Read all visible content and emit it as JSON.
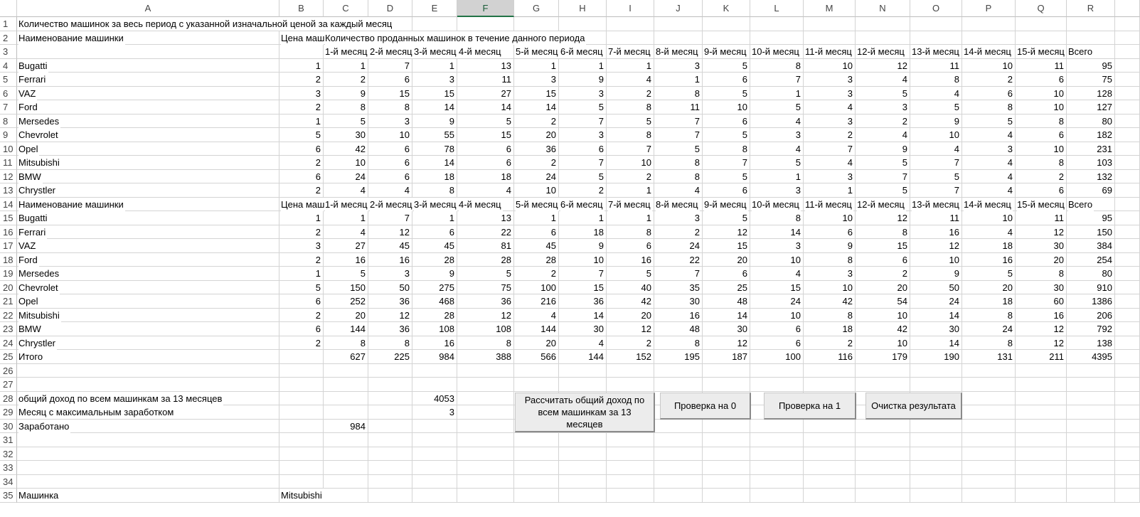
{
  "sheet": {
    "columns": [
      "A",
      "B",
      "C",
      "D",
      "E",
      "F",
      "G",
      "H",
      "I",
      "J",
      "K",
      "L",
      "M",
      "N",
      "O",
      "P",
      "Q",
      "R"
    ],
    "row_numbers": [
      1,
      2,
      3,
      4,
      5,
      6,
      7,
      8,
      9,
      10,
      11,
      12,
      13,
      14,
      15,
      16,
      17,
      18,
      19,
      20,
      21,
      22,
      23,
      24,
      25,
      26,
      27,
      28,
      29,
      30,
      31,
      32,
      33,
      34,
      35
    ],
    "rows": [
      {
        "A": "Количество машинок за весь период с указанной изначальной ценой за каждый месяц"
      },
      {
        "A": "Наименование машинки",
        "B": "Цена маш",
        "C": "Количество проданных машинок в течение данного периода"
      },
      {
        "C": "1-й месяц",
        "D": "2-й месяц",
        "E": "3-й месяц",
        "F": "4-й месяц",
        "G": "5-й месяц",
        "H": "6-й месяц",
        "I": "7-й месяц",
        "J": "8-й месяц",
        "K": "9-й месяц",
        "L": "10-й месяц",
        "M": "11-й месяц",
        "N": "12-й месяц",
        "O": "13-й месяц",
        "P": "14-й месяц",
        "Q": "15-й месяц",
        "R": "Всего"
      },
      {
        "A": "Bugatti",
        "B": 1,
        "C": 1,
        "D": 7,
        "E": 1,
        "F": 13,
        "G": 1,
        "H": 1,
        "I": 1,
        "J": 3,
        "K": 5,
        "L": 8,
        "M": 10,
        "N": 12,
        "O": 11,
        "P": 10,
        "Q": 11,
        "R": 95
      },
      {
        "A": "Ferrari",
        "B": 2,
        "C": 2,
        "D": 6,
        "E": 3,
        "F": 11,
        "G": 3,
        "H": 9,
        "I": 4,
        "J": 1,
        "K": 6,
        "L": 7,
        "M": 3,
        "N": 4,
        "O": 8,
        "P": 2,
        "Q": 6,
        "R": 75
      },
      {
        "A": "VAZ",
        "B": 3,
        "C": 9,
        "D": 15,
        "E": 15,
        "F": 27,
        "G": 15,
        "H": 3,
        "I": 2,
        "J": 8,
        "K": 5,
        "L": 1,
        "M": 3,
        "N": 5,
        "O": 4,
        "P": 6,
        "Q": 10,
        "R": 128
      },
      {
        "A": "Ford",
        "B": 2,
        "C": 8,
        "D": 8,
        "E": 14,
        "F": 14,
        "G": 14,
        "H": 5,
        "I": 8,
        "J": 11,
        "K": 10,
        "L": 5,
        "M": 4,
        "N": 3,
        "O": 5,
        "P": 8,
        "Q": 10,
        "R": 127
      },
      {
        "A": "Mersedes",
        "B": 1,
        "C": 5,
        "D": 3,
        "E": 9,
        "F": 5,
        "G": 2,
        "H": 7,
        "I": 5,
        "J": 7,
        "K": 6,
        "L": 4,
        "M": 3,
        "N": 2,
        "O": 9,
        "P": 5,
        "Q": 8,
        "R": 80
      },
      {
        "A": "Chevrolet",
        "B": 5,
        "C": 30,
        "D": 10,
        "E": 55,
        "F": 15,
        "G": 20,
        "H": 3,
        "I": 8,
        "J": 7,
        "K": 5,
        "L": 3,
        "M": 2,
        "N": 4,
        "O": 10,
        "P": 4,
        "Q": 6,
        "R": 182
      },
      {
        "A": "Opel",
        "B": 6,
        "C": 42,
        "D": 6,
        "E": 78,
        "F": 6,
        "G": 36,
        "H": 6,
        "I": 7,
        "J": 5,
        "K": 8,
        "L": 4,
        "M": 7,
        "N": 9,
        "O": 4,
        "P": 3,
        "Q": 10,
        "R": 231
      },
      {
        "A": "Mitsubishi",
        "B": 2,
        "C": 10,
        "D": 6,
        "E": 14,
        "F": 6,
        "G": 2,
        "H": 7,
        "I": 10,
        "J": 8,
        "K": 7,
        "L": 5,
        "M": 4,
        "N": 5,
        "O": 7,
        "P": 4,
        "Q": 8,
        "R": 103
      },
      {
        "A": "BMW",
        "B": 6,
        "C": 24,
        "D": 6,
        "E": 18,
        "F": 18,
        "G": 24,
        "H": 5,
        "I": 2,
        "J": 8,
        "K": 5,
        "L": 1,
        "M": 3,
        "N": 7,
        "O": 5,
        "P": 4,
        "Q": 2,
        "R": 132
      },
      {
        "A": "Chrystler",
        "B": 2,
        "C": 4,
        "D": 4,
        "E": 8,
        "F": 4,
        "G": 10,
        "H": 2,
        "I": 1,
        "J": 4,
        "K": 6,
        "L": 3,
        "M": 1,
        "N": 5,
        "O": 7,
        "P": 4,
        "Q": 6,
        "R": 69
      },
      {
        "A": "Наименование машинки",
        "B": "Цена маш",
        "C": "1-й месяц",
        "D": "2-й месяц",
        "E": "3-й месяц",
        "F": "4-й месяц",
        "G": "5-й месяц",
        "H": "6-й месяц",
        "I": "7-й месяц",
        "J": "8-й месяц",
        "K": "9-й месяц",
        "L": "10-й месяц",
        "M": "11-й месяц",
        "N": "12-й месяц",
        "O": "13-й месяц",
        "P": "14-й месяц",
        "Q": "15-й месяц",
        "R": "Всего"
      },
      {
        "A": "Bugatti",
        "B": 1,
        "C": 1,
        "D": 7,
        "E": 1,
        "F": 13,
        "G": 1,
        "H": 1,
        "I": 1,
        "J": 3,
        "K": 5,
        "L": 8,
        "M": 10,
        "N": 12,
        "O": 11,
        "P": 10,
        "Q": 11,
        "R": 95
      },
      {
        "A": "Ferrari",
        "B": 2,
        "C": 4,
        "D": 12,
        "E": 6,
        "F": 22,
        "G": 6,
        "H": 18,
        "I": 8,
        "J": 2,
        "K": 12,
        "L": 14,
        "M": 6,
        "N": 8,
        "O": 16,
        "P": 4,
        "Q": 12,
        "R": 150
      },
      {
        "A": "VAZ",
        "B": 3,
        "C": 27,
        "D": 45,
        "E": 45,
        "F": 81,
        "G": 45,
        "H": 9,
        "I": 6,
        "J": 24,
        "K": 15,
        "L": 3,
        "M": 9,
        "N": 15,
        "O": 12,
        "P": 18,
        "Q": 30,
        "R": 384
      },
      {
        "A": "Ford",
        "B": 2,
        "C": 16,
        "D": 16,
        "E": 28,
        "F": 28,
        "G": 28,
        "H": 10,
        "I": 16,
        "J": 22,
        "K": 20,
        "L": 10,
        "M": 8,
        "N": 6,
        "O": 10,
        "P": 16,
        "Q": 20,
        "R": 254
      },
      {
        "A": "Mersedes",
        "B": 1,
        "C": 5,
        "D": 3,
        "E": 9,
        "F": 5,
        "G": 2,
        "H": 7,
        "I": 5,
        "J": 7,
        "K": 6,
        "L": 4,
        "M": 3,
        "N": 2,
        "O": 9,
        "P": 5,
        "Q": 8,
        "R": 80
      },
      {
        "A": "Chevrolet",
        "B": 5,
        "C": 150,
        "D": 50,
        "E": 275,
        "F": 75,
        "G": 100,
        "H": 15,
        "I": 40,
        "J": 35,
        "K": 25,
        "L": 15,
        "M": 10,
        "N": 20,
        "O": 50,
        "P": 20,
        "Q": 30,
        "R": 910
      },
      {
        "A": "Opel",
        "B": 6,
        "C": 252,
        "D": 36,
        "E": 468,
        "F": 36,
        "G": 216,
        "H": 36,
        "I": 42,
        "J": 30,
        "K": 48,
        "L": 24,
        "M": 42,
        "N": 54,
        "O": 24,
        "P": 18,
        "Q": 60,
        "R": 1386
      },
      {
        "A": "Mitsubishi",
        "B": 2,
        "C": 20,
        "D": 12,
        "E": 28,
        "F": 12,
        "G": 4,
        "H": 14,
        "I": 20,
        "J": 16,
        "K": 14,
        "L": 10,
        "M": 8,
        "N": 10,
        "O": 14,
        "P": 8,
        "Q": 16,
        "R": 206
      },
      {
        "A": "BMW",
        "B": 6,
        "C": 144,
        "D": 36,
        "E": 108,
        "F": 108,
        "G": 144,
        "H": 30,
        "I": 12,
        "J": 48,
        "K": 30,
        "L": 6,
        "M": 18,
        "N": 42,
        "O": 30,
        "P": 24,
        "Q": 12,
        "R": 792
      },
      {
        "A": "Chrystler",
        "B": 2,
        "C": 8,
        "D": 8,
        "E": 16,
        "F": 8,
        "G": 20,
        "H": 4,
        "I": 2,
        "J": 8,
        "K": 12,
        "L": 6,
        "M": 2,
        "N": 10,
        "O": 14,
        "P": 8,
        "Q": 12,
        "R": 138
      },
      {
        "A": "Итого",
        "C": 627,
        "D": 225,
        "E": 984,
        "F": 388,
        "G": 566,
        "H": 144,
        "I": 152,
        "J": 195,
        "K": 187,
        "L": 100,
        "M": 116,
        "N": 179,
        "O": 190,
        "P": 131,
        "Q": 211,
        "R": 4395
      },
      {},
      {},
      {
        "A": "общий доход по всем машинкам за 13 месяцев",
        "E": 4053
      },
      {
        "A": "Месяц с максимальным заработком",
        "E": 3
      },
      {
        "A": "Заработано",
        "C": 984
      },
      {},
      {},
      {},
      {},
      {
        "A": "Машинка",
        "B": "Mitsubishi"
      }
    ],
    "buttons": [
      "Рассчитать общий доход по всем машинкам за 13 месяцев",
      "Проверка на 0",
      "Проверка на 1",
      "Очистка результата"
    ]
  }
}
